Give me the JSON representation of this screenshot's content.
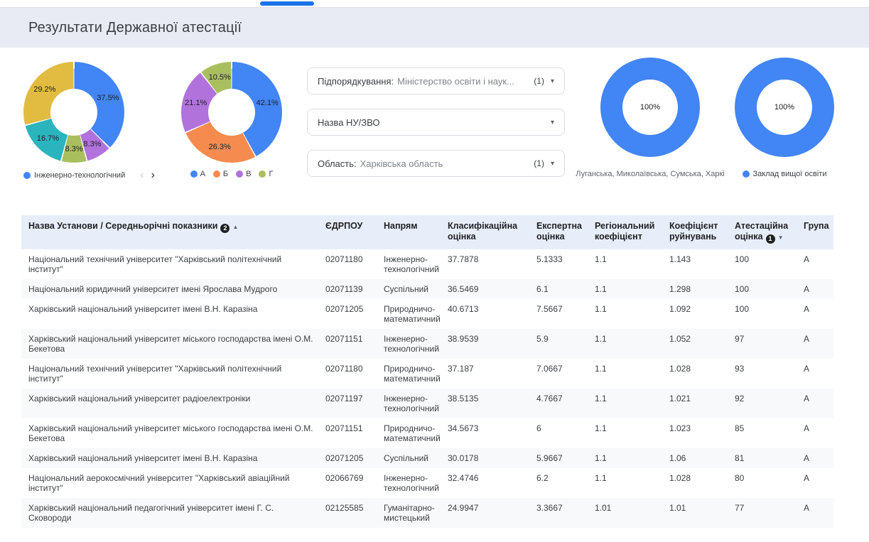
{
  "page": {
    "title": "Результати Державної атестації"
  },
  "filters": [
    {
      "label": "Підпорядкування:",
      "value": "Міністерство освіти і наук...",
      "count": "(1)",
      "caret": "▾"
    },
    {
      "label": "Назва НУ/ЗВО",
      "value": "",
      "count": "",
      "caret": "▾"
    },
    {
      "label": "Область:",
      "value": "Харківська область",
      "count": "(1)",
      "caret": "▾"
    }
  ],
  "chart_data": [
    {
      "type": "pie",
      "name": "directions-donut",
      "slices": [
        {
          "label": "Інженерно-технологічний",
          "value": 37.5,
          "color": "#4285f4"
        },
        {
          "label": "",
          "value": 8.3,
          "color": "#b173db"
        },
        {
          "label": "",
          "value": 8.3,
          "color": "#a9bf5e"
        },
        {
          "label": "",
          "value": 16.7,
          "color": "#2ab4be"
        },
        {
          "label": "",
          "value": 29.2,
          "color": "#e2bc40"
        }
      ],
      "legend": [
        {
          "label": "Інженерно-технологічний",
          "color": "#4285f4"
        }
      ],
      "legend_pagination": {
        "prev": "‹",
        "next": "›"
      }
    },
    {
      "type": "pie",
      "name": "groups-donut",
      "slices": [
        {
          "label": "А",
          "value": 42.1,
          "color": "#4285f4"
        },
        {
          "label": "Б",
          "value": 26.3,
          "color": "#f58b4e"
        },
        {
          "label": "В",
          "value": 21.1,
          "color": "#b173db"
        },
        {
          "label": "Г",
          "value": 10.5,
          "color": "#a9bf5e"
        }
      ],
      "legend": [
        {
          "label": "А",
          "color": "#4285f4"
        },
        {
          "label": "Б",
          "color": "#f58b4e"
        },
        {
          "label": "В",
          "color": "#b173db"
        },
        {
          "label": "Г",
          "color": "#a9bf5e"
        }
      ]
    },
    {
      "type": "pie",
      "name": "regions-donut",
      "slices": [
        {
          "label": "Луганська, Миколаївська, Сумська, Харкі",
          "value": 100,
          "color": "#4285f4"
        }
      ],
      "caption": "Луганська, Миколаївська, Сумська, Харкі"
    },
    {
      "type": "pie",
      "name": "institution-type-donut",
      "slices": [
        {
          "label": "Заклад вищої освіти",
          "value": 100,
          "color": "#4285f4"
        }
      ],
      "legend": [
        {
          "label": "Заклад вищої освіти",
          "color": "#4285f4"
        }
      ]
    }
  ],
  "table": {
    "headers": [
      {
        "label": "Назва Установи / Середньорічні показники",
        "badge": "2",
        "arrow": "▲"
      },
      {
        "label": "ЄДРПОУ"
      },
      {
        "label": "Напрям"
      },
      {
        "label": "Класифікаційна оцінка"
      },
      {
        "label": "Експертна оцінка"
      },
      {
        "label": "Регіональний коефіцієнт"
      },
      {
        "label": "Коефіцієнт руйнувань"
      },
      {
        "label": "Атестаційна оцінка",
        "badge": "1",
        "arrow": "▼"
      },
      {
        "label": "Група"
      }
    ],
    "rows": [
      [
        "Національний технічний університет \"Харківський політехнічний інститут\"",
        "02071180",
        "Інженерно-технологічний",
        "37.7878",
        "5.1333",
        "1.1",
        "1.143",
        "100",
        "А"
      ],
      [
        "Національний юридичний університет імені Ярослава Мудрого",
        "02071139",
        "Суспільний",
        "36.5469",
        "6.1",
        "1.1",
        "1.298",
        "100",
        "А"
      ],
      [
        "Харківський національний університет імені В.Н. Каразіна",
        "02071205",
        "Природничо-математичний",
        "40.6713",
        "7.5667",
        "1.1",
        "1.092",
        "100",
        "А"
      ],
      [
        "Харківський національний університет міського господарства імені О.М. Бекетова",
        "02071151",
        "Інженерно-технологічний",
        "38.9539",
        "5.9",
        "1.1",
        "1.052",
        "97",
        "А"
      ],
      [
        "Національний технічний університет \"Харківський політехнічний інститут\"",
        "02071180",
        "Природничо-математичний",
        "37.187",
        "7.0667",
        "1.1",
        "1.028",
        "93",
        "А"
      ],
      [
        "Харківський національний університет радіоелектроніки",
        "02071197",
        "Інженерно-технологічний",
        "38.5135",
        "4.7667",
        "1.1",
        "1.021",
        "92",
        "А"
      ],
      [
        "Харківський національний університет міського господарства імені О.М. Бекетова",
        "02071151",
        "Природничо-математичний",
        "34.5673",
        "6",
        "1.1",
        "1.023",
        "85",
        "А"
      ],
      [
        "Харківський національний університет імені В.Н. Каразіна",
        "02071205",
        "Суспільний",
        "30.0178",
        "5.9667",
        "1.1",
        "1.06",
        "81",
        "А"
      ],
      [
        "Національний аерокосмічний університет \"Харківський авіаційний інститут\"",
        "02066769",
        "Інженерно-технологічний",
        "32.4746",
        "6.2",
        "1.1",
        "1.028",
        "80",
        "А"
      ],
      [
        "Харківський національний педагогічний університет імені Г. С. Сковороди",
        "02125585",
        "Гуманітарно-мистецький",
        "24.9947",
        "3.3667",
        "1.01",
        "1.01",
        "77",
        "А"
      ]
    ]
  }
}
